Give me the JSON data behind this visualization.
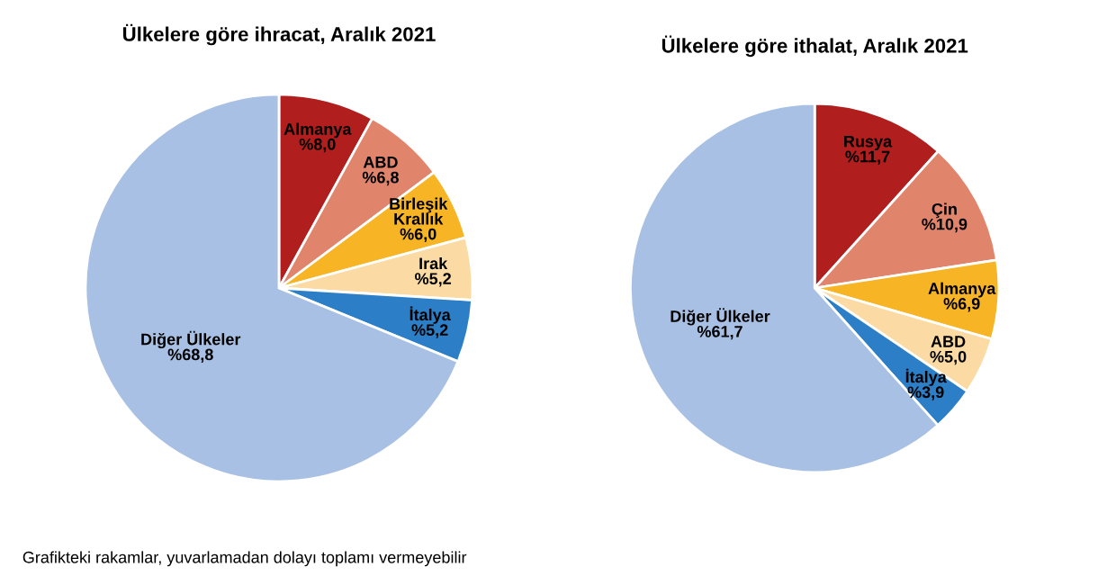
{
  "chart_data": [
    {
      "type": "pie",
      "title": "Ülkelere göre ihracat, Aralık 2021",
      "categories": [
        "Almanya",
        "ABD",
        "Birleşik\nKrallık",
        "Irak",
        "İtalya",
        "Diğer Ülkeler"
      ],
      "values": [
        8.0,
        6.8,
        6.0,
        5.2,
        5.2,
        68.8
      ],
      "value_labels": [
        "%8,0",
        "%6,8",
        "%6,0",
        "%5,2",
        "%5,2",
        "%68,8"
      ],
      "colors": [
        "#b01e1e",
        "#e0846c",
        "#f7b526",
        "#fbdba3",
        "#2c7fc6",
        "#a8c0e4"
      ],
      "annotations": [
        "Grafikteki rakamlar, yuvarlamadan dolayı toplamı vermeyebilir"
      ]
    },
    {
      "type": "pie",
      "title": "Ülkelere göre ithalat, Aralık 2021",
      "categories": [
        "Rusya",
        "Çin",
        "Almanya",
        "ABD",
        "İtalya",
        "Diğer Ülkeler"
      ],
      "values": [
        11.7,
        10.9,
        6.9,
        5.0,
        3.9,
        61.7
      ],
      "value_labels": [
        "%11,7",
        "%10,9",
        "%6,9",
        "%5,0",
        "%3,9",
        "%61,7"
      ],
      "colors": [
        "#b01e1e",
        "#e0846c",
        "#f7b526",
        "#fbdba3",
        "#2c7fc6",
        "#a8c0e4"
      ]
    }
  ]
}
